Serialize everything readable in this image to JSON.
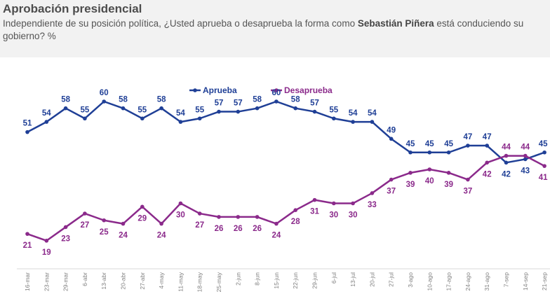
{
  "header": {
    "title": "Aprobación presidencial",
    "subtitle_pre": "Independiente de su posición política, ¿Usted aprueba o desaprueba la forma como ",
    "subtitle_name": "Sebastián Piñera",
    "subtitle_post": " está conduciendo su gobierno? %"
  },
  "chart_data": {
    "type": "line",
    "title": "Aprobación presidencial",
    "unit": "%",
    "categories": [
      "16-mar",
      "23-mar",
      "29-mar",
      "6-abr",
      "13-abr",
      "20-abr",
      "27-abr",
      "4-may",
      "11-may",
      "18-may",
      "25-may",
      "2-jun",
      "8-jun",
      "15-jun",
      "22-jun",
      "29-jun",
      "6-jul",
      "13-jul",
      "20-jul",
      "27-jul",
      "3-ago",
      "10-ago",
      "17-ago",
      "24-ago",
      "31-ago",
      "7-sep",
      "14-sep",
      "21-sep"
    ],
    "series": [
      {
        "name": "Aprueba",
        "color": "#1f3f96",
        "values": [
          51,
          54,
          58,
          55,
          60,
          58,
          55,
          58,
          54,
          55,
          57,
          57,
          58,
          60,
          58,
          57,
          55,
          54,
          54,
          49,
          45,
          45,
          45,
          47,
          47,
          42,
          43,
          45
        ]
      },
      {
        "name": "Desaprueba",
        "color": "#8b2a8b",
        "values": [
          21,
          19,
          23,
          27,
          25,
          24,
          29,
          24,
          30,
          27,
          26,
          26,
          26,
          24,
          28,
          31,
          30,
          30,
          33,
          37,
          39,
          40,
          39,
          37,
          42,
          44,
          44,
          41
        ]
      }
    ],
    "legend_position": "top-center",
    "grid": false
  }
}
